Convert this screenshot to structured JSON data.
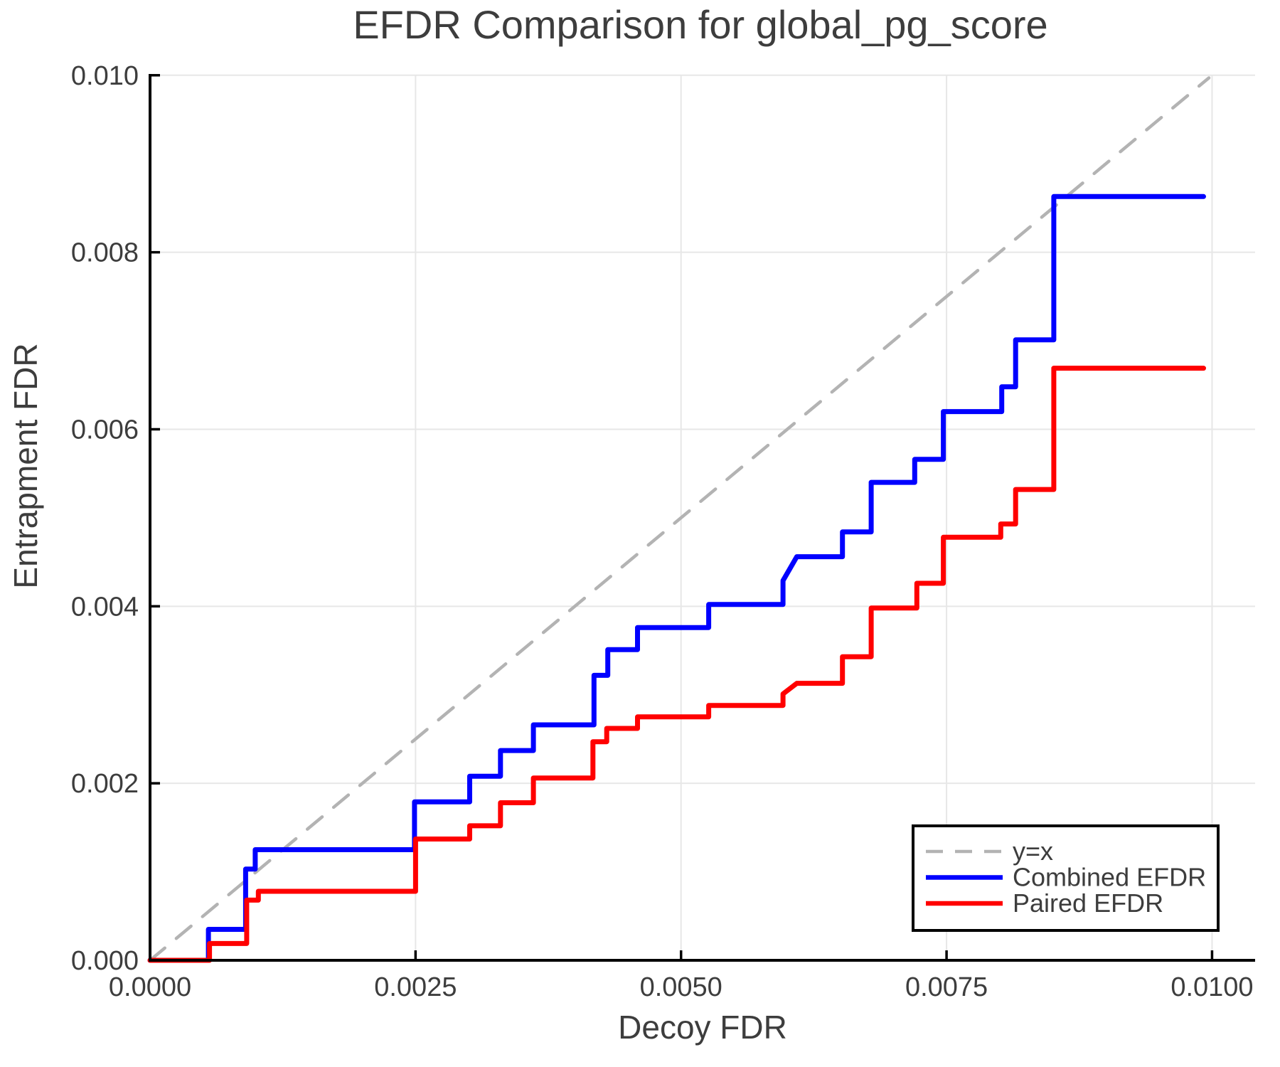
{
  "title": "EFDR Comparison for global_pg_score",
  "colors": {
    "background": "#ffffff",
    "text": "#3d3d3d",
    "grid": "#e7e7e7",
    "axis": "#000000",
    "identity": "#b3b3b3",
    "combined": "#0000ff",
    "paired": "#ff0000"
  },
  "chart_data": {
    "type": "line",
    "title": "EFDR Comparison for global_pg_score",
    "xlabel": "Decoy FDR",
    "ylabel": "Entrapment FDR",
    "xlim": [
      0.0,
      0.0104
    ],
    "ylim": [
      0.0,
      0.01
    ],
    "grid": true,
    "x_ticks": [
      {
        "v": 0.0,
        "label": "0.0000"
      },
      {
        "v": 0.0025,
        "label": "0.0025"
      },
      {
        "v": 0.005,
        "label": "0.0050"
      },
      {
        "v": 0.0075,
        "label": "0.0075"
      },
      {
        "v": 0.01,
        "label": "0.0100"
      }
    ],
    "y_ticks": [
      {
        "v": 0.0,
        "label": "0.000"
      },
      {
        "v": 0.002,
        "label": "0.002"
      },
      {
        "v": 0.004,
        "label": "0.004"
      },
      {
        "v": 0.006,
        "label": "0.006"
      },
      {
        "v": 0.008,
        "label": "0.008"
      },
      {
        "v": 0.01,
        "label": "0.010"
      }
    ],
    "legend": {
      "position": "bottom-right",
      "entries": [
        {
          "label": "y=x",
          "color": "#b3b3b3",
          "dashed": true
        },
        {
          "label": "Combined EFDR",
          "color": "#0000ff",
          "dashed": false
        },
        {
          "label": "Paired EFDR",
          "color": "#ff0000",
          "dashed": false
        }
      ]
    },
    "series": [
      {
        "name": "y=x",
        "slug": "identity-line",
        "color": "#b3b3b3",
        "dashed": true,
        "width": 4.5,
        "points": [
          [
            0.0,
            0.0
          ],
          [
            0.00997,
            0.00997
          ]
        ]
      },
      {
        "name": "Combined EFDR",
        "slug": "combined-efdr",
        "color": "#0000ff",
        "dashed": false,
        "width": 7,
        "points": [
          [
            0.0,
            0.0
          ],
          [
            0.00055,
            0.0
          ],
          [
            0.00055,
            0.00035
          ],
          [
            0.0009,
            0.00035
          ],
          [
            0.0009,
            0.00103
          ],
          [
            0.00099,
            0.00103
          ],
          [
            0.00099,
            0.00125
          ],
          [
            0.00249,
            0.00125
          ],
          [
            0.00249,
            0.00179
          ],
          [
            0.00301,
            0.00179
          ],
          [
            0.00301,
            0.00208
          ],
          [
            0.0033,
            0.00208
          ],
          [
            0.0033,
            0.00237
          ],
          [
            0.00361,
            0.00237
          ],
          [
            0.00361,
            0.00266
          ],
          [
            0.00418,
            0.00266
          ],
          [
            0.00418,
            0.00322
          ],
          [
            0.00431,
            0.00322
          ],
          [
            0.00431,
            0.00351
          ],
          [
            0.00459,
            0.00351
          ],
          [
            0.00459,
            0.00376
          ],
          [
            0.00526,
            0.00376
          ],
          [
            0.00526,
            0.00402
          ],
          [
            0.00596,
            0.00402
          ],
          [
            0.00596,
            0.00429
          ],
          [
            0.00609,
            0.00456
          ],
          [
            0.00652,
            0.00456
          ],
          [
            0.00652,
            0.00484
          ],
          [
            0.00679,
            0.00484
          ],
          [
            0.00679,
            0.0054
          ],
          [
            0.0072,
            0.0054
          ],
          [
            0.0072,
            0.00566
          ],
          [
            0.00747,
            0.00566
          ],
          [
            0.00747,
            0.0062
          ],
          [
            0.00802,
            0.0062
          ],
          [
            0.00802,
            0.00648
          ],
          [
            0.00815,
            0.00648
          ],
          [
            0.00815,
            0.00701
          ],
          [
            0.00851,
            0.00701
          ],
          [
            0.00851,
            0.00863
          ],
          [
            0.00992,
            0.00863
          ]
        ]
      },
      {
        "name": "Paired EFDR",
        "slug": "paired-efdr",
        "color": "#ff0000",
        "dashed": false,
        "width": 7,
        "points": [
          [
            0.0,
            0.0
          ],
          [
            0.00056,
            0.0
          ],
          [
            0.00056,
            0.00019
          ],
          [
            0.00091,
            0.00019
          ],
          [
            0.00091,
            0.00068
          ],
          [
            0.00102,
            0.00068
          ],
          [
            0.00102,
            0.00078
          ],
          [
            0.0025,
            0.00078
          ],
          [
            0.0025,
            0.00137
          ],
          [
            0.00301,
            0.00137
          ],
          [
            0.00301,
            0.00152
          ],
          [
            0.0033,
            0.00152
          ],
          [
            0.0033,
            0.00178
          ],
          [
            0.00361,
            0.00178
          ],
          [
            0.00361,
            0.00206
          ],
          [
            0.00417,
            0.00206
          ],
          [
            0.00417,
            0.00247
          ],
          [
            0.0043,
            0.00247
          ],
          [
            0.0043,
            0.00262
          ],
          [
            0.00459,
            0.00262
          ],
          [
            0.00459,
            0.00275
          ],
          [
            0.00526,
            0.00275
          ],
          [
            0.00526,
            0.00288
          ],
          [
            0.00596,
            0.00288
          ],
          [
            0.00596,
            0.00301
          ],
          [
            0.00609,
            0.00313
          ],
          [
            0.00652,
            0.00313
          ],
          [
            0.00652,
            0.00343
          ],
          [
            0.00679,
            0.00343
          ],
          [
            0.00679,
            0.00398
          ],
          [
            0.00722,
            0.00398
          ],
          [
            0.00722,
            0.00426
          ],
          [
            0.00747,
            0.00426
          ],
          [
            0.00747,
            0.00478
          ],
          [
            0.00801,
            0.00478
          ],
          [
            0.00801,
            0.00493
          ],
          [
            0.00815,
            0.00493
          ],
          [
            0.00815,
            0.00532
          ],
          [
            0.00851,
            0.00532
          ],
          [
            0.00851,
            0.00669
          ],
          [
            0.00992,
            0.00669
          ]
        ]
      }
    ]
  }
}
